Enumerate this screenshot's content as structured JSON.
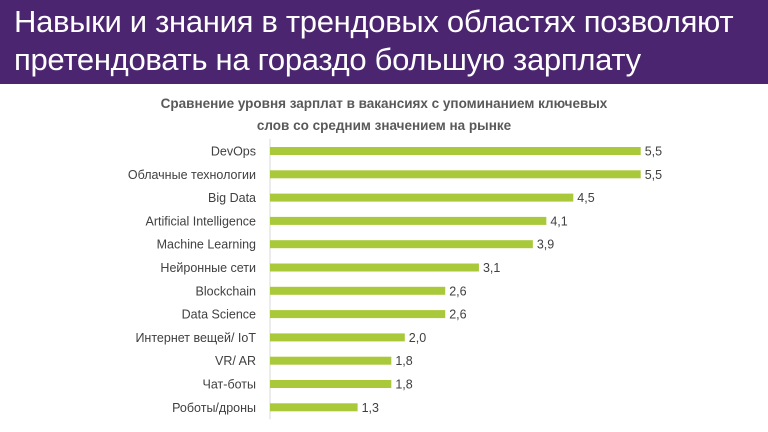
{
  "header": {
    "title_line1": "Навыки и знания в трендовых областях позволяют",
    "title_line2": "претендовать на гораздо большую зарплату"
  },
  "colors": {
    "header_bg": "#4b2570",
    "bar": "#a9c93a"
  },
  "chart_data": {
    "type": "bar",
    "orientation": "horizontal",
    "title_line1": "Сравнение уровня зарплат в вакансиях с упоминанием ключевых",
    "title_line2": "слов со средним значением на рынке",
    "categories": [
      "DevOps",
      "Облачные технологии",
      "Big Data",
      "Artificial Intelligence",
      "Machine Learning",
      "Нейронные сети",
      "Blockchain",
      "Data Science",
      "Интернет вещей/ IoT",
      "VR/ AR",
      "Чат-боты",
      "Роботы/дроны"
    ],
    "values": [
      5.5,
      5.5,
      4.5,
      4.1,
      3.9,
      3.1,
      2.6,
      2.6,
      2.0,
      1.8,
      1.8,
      1.3
    ],
    "labels": [
      "5,5",
      "5,5",
      "4,5",
      "4,1",
      "3,9",
      "3,1",
      "2,6",
      "2,6",
      "2,0",
      "1,8",
      "1,8",
      "1,3"
    ],
    "xlim": [
      0,
      5.6
    ],
    "grid": false,
    "legend": "none"
  }
}
